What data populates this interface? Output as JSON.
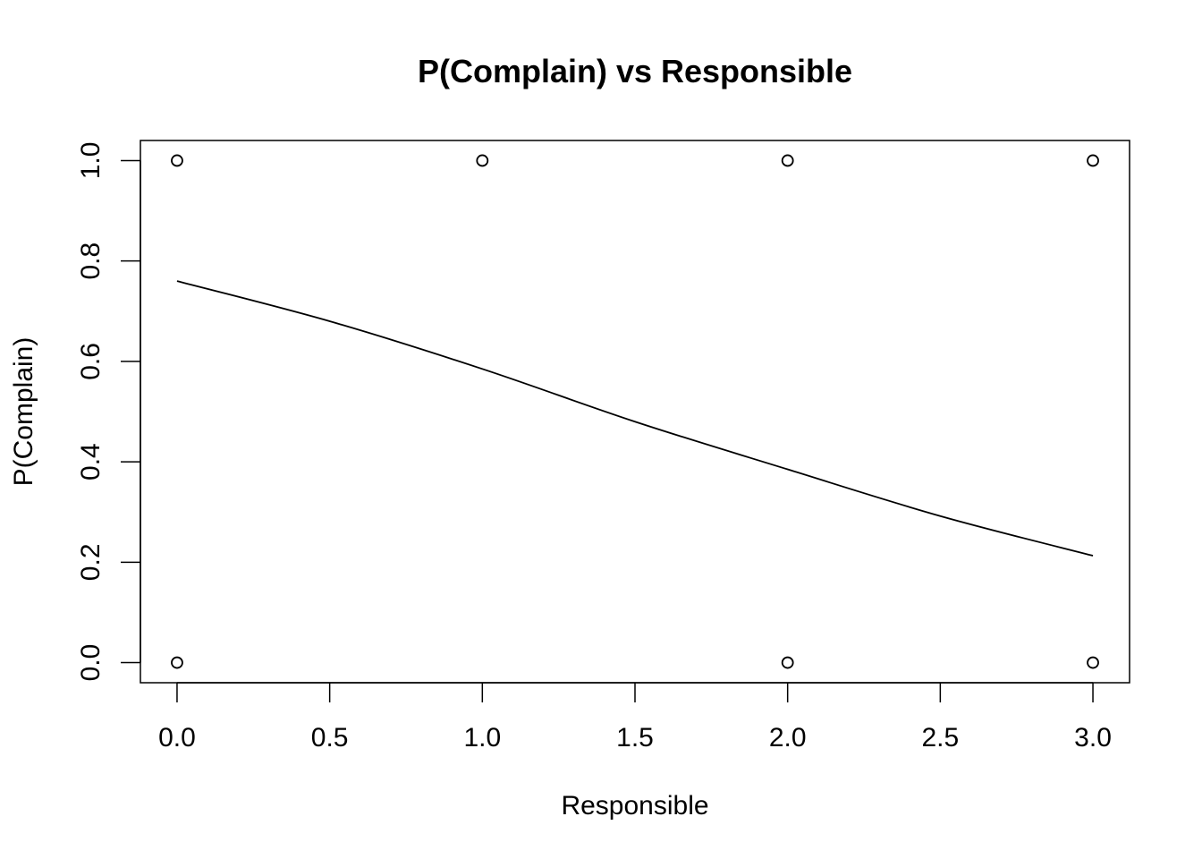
{
  "chart_data": {
    "type": "scatter",
    "title": "P(Complain) vs Responsible",
    "xlabel": "Responsible",
    "ylabel": "P(Complain)",
    "xlim": [
      -0.12,
      3.12
    ],
    "ylim": [
      -0.04,
      1.04
    ],
    "x_ticks": [
      "0.0",
      "0.5",
      "1.0",
      "1.5",
      "2.0",
      "2.5",
      "3.0"
    ],
    "y_ticks": [
      "0.0",
      "0.2",
      "0.4",
      "0.6",
      "0.8",
      "1.0"
    ],
    "grid": false,
    "legend": "none",
    "series": [
      {
        "type": "scatter",
        "marker": "open-circle",
        "x": [
          0,
          1,
          2,
          3,
          0,
          2,
          3
        ],
        "y": [
          1,
          1,
          1,
          1,
          0,
          0,
          0
        ]
      },
      {
        "type": "line",
        "x": [
          0.0,
          0.5,
          1.0,
          1.5,
          2.0,
          2.5,
          3.0
        ],
        "y": [
          0.76,
          0.68,
          0.585,
          0.48,
          0.385,
          0.292,
          0.213
        ]
      }
    ],
    "colors": {
      "ink": "#000000",
      "background": "#ffffff"
    }
  }
}
